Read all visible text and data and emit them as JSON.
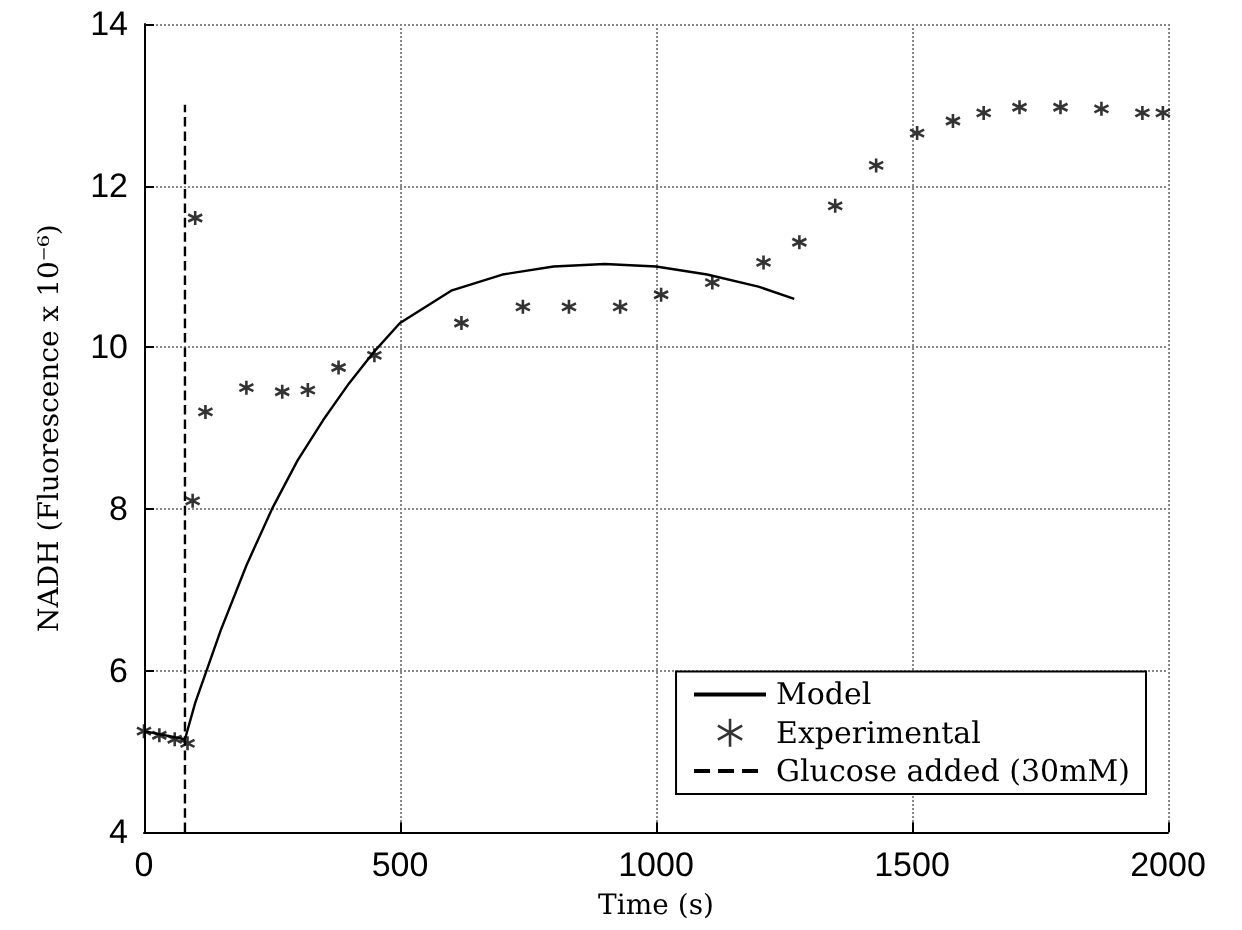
{
  "chart_data": {
    "type": "line",
    "xlabel": "Time (s)",
    "ylabel": "NADH (Fluorescence x 10⁻⁶)",
    "xlim": [
      0,
      2000
    ],
    "xticks": [
      0,
      500,
      1000,
      1500,
      2000
    ],
    "ylim": [
      4,
      14
    ],
    "yticks": [
      4,
      6,
      8,
      10,
      12,
      14
    ],
    "grid": true,
    "legend": "bottom right",
    "series": [
      {
        "name": "Model",
        "color": "#000000",
        "marker": "none",
        "line_style": "solid",
        "x": [
          0,
          80,
          100,
          150,
          200,
          250,
          300,
          350,
          400,
          450,
          500,
          600,
          700,
          800,
          900,
          1000,
          1100,
          1200,
          1270
        ],
        "values": [
          5.25,
          5.15,
          5.6,
          6.5,
          7.3,
          8.0,
          8.6,
          9.1,
          9.55,
          9.95,
          10.3,
          10.7,
          10.9,
          11.0,
          11.03,
          11.0,
          10.9,
          10.75,
          10.6
        ]
      },
      {
        "name": "Experimental",
        "type": "scatter",
        "color": "#000000",
        "marker": "cross",
        "x": [
          0,
          30,
          60,
          85,
          95,
          100,
          120,
          200,
          270,
          320,
          380,
          450,
          620,
          740,
          830,
          930,
          1010,
          1110,
          1210,
          1280,
          1350,
          1430,
          1510,
          1580,
          1640,
          1710,
          1790,
          1870,
          1950,
          1990
        ],
        "values": [
          5.25,
          5.2,
          5.15,
          5.1,
          8.1,
          11.6,
          9.2,
          9.5,
          9.45,
          9.47,
          9.75,
          9.9,
          10.3,
          10.5,
          10.5,
          10.5,
          10.65,
          10.8,
          11.05,
          11.3,
          11.75,
          12.25,
          12.65,
          12.8,
          12.9,
          12.97,
          12.97,
          12.95,
          12.9,
          12.9
        ]
      },
      {
        "name": "Glucose added (30mM)",
        "color": "#000000",
        "marker": "none",
        "line_style": "dashed",
        "x": [
          80,
          80
        ],
        "values": [
          4,
          13
        ]
      }
    ]
  }
}
